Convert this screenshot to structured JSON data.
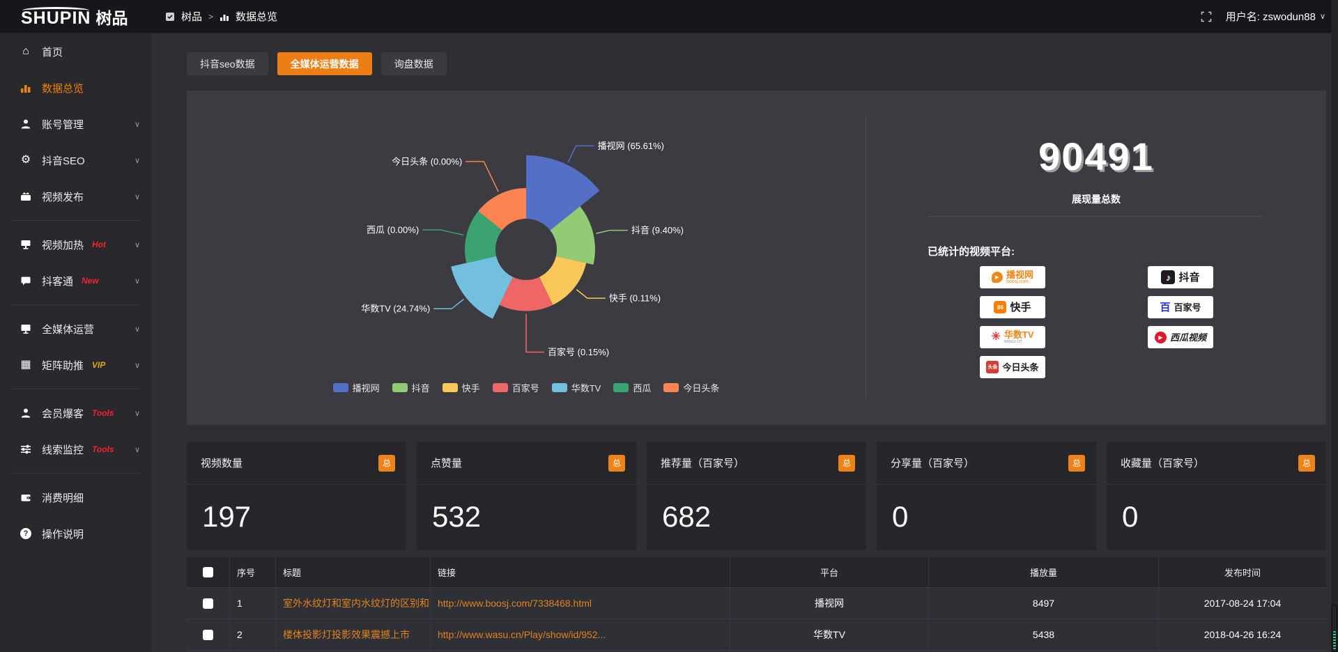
{
  "header": {
    "logo_text": "SHUPIN",
    "logo_cn": "树品",
    "breadcrumb": {
      "root": "树品",
      "sep": ">",
      "current": "数据总览"
    },
    "username_label": "用户名: zswodun88"
  },
  "sidebar": {
    "items": [
      {
        "label": "首页"
      },
      {
        "label": "数据总览"
      },
      {
        "label": "账号管理"
      },
      {
        "label": "抖音SEO"
      },
      {
        "label": "视频发布"
      },
      {
        "label": "视频加热",
        "badge": "Hot"
      },
      {
        "label": "抖客通",
        "badge": "New"
      },
      {
        "label": "全媒体运营"
      },
      {
        "label": "矩阵助推",
        "badge": "VIP"
      },
      {
        "label": "会员爆客",
        "badge": "Tools"
      },
      {
        "label": "线索监控",
        "badge": "Tools"
      },
      {
        "label": "消费明细"
      },
      {
        "label": "操作说明"
      }
    ]
  },
  "tabs": {
    "items": [
      {
        "label": "抖音seo数据"
      },
      {
        "label": "全媒体运营数据"
      },
      {
        "label": "询盘数据"
      }
    ]
  },
  "chart_data": {
    "type": "pie",
    "subtype": "nightingale-rose",
    "title": "",
    "legend_position": "bottom",
    "total": 90491,
    "series": [
      {
        "name": "播视网",
        "pct": 65.61,
        "color": "#5470c6"
      },
      {
        "name": "抖音",
        "pct": 9.4,
        "color": "#91cc75"
      },
      {
        "name": "快手",
        "pct": 0.11,
        "color": "#fac858"
      },
      {
        "name": "百家号",
        "pct": 0.15,
        "color": "#ee6666"
      },
      {
        "name": "华数TV",
        "pct": 24.74,
        "color": "#73c0de"
      },
      {
        "name": "西瓜",
        "pct": 0.0,
        "color": "#3ba272"
      },
      {
        "name": "今日头条",
        "pct": 0.0,
        "color": "#fc8452"
      }
    ]
  },
  "summary": {
    "total_value": "90491",
    "total_label": "展现量总数",
    "platforms_label": "已统计的视频平台:",
    "platforms": {
      "col1": [
        {
          "name": "播视网",
          "sub": "boosj.com"
        },
        {
          "name": "快手"
        },
        {
          "name": "华数TV",
          "sub": "wasu.cn"
        },
        {
          "name": "今日头条"
        }
      ],
      "col2": [
        {
          "name": "抖音"
        },
        {
          "name": "百家号"
        },
        {
          "name": "西瓜视频"
        }
      ]
    }
  },
  "cards": {
    "badge": "总",
    "items": [
      {
        "title": "视频数量",
        "value": "197"
      },
      {
        "title": "点赞量",
        "value": "532"
      },
      {
        "title": "推荐量（百家号）",
        "value": "682"
      },
      {
        "title": "分享量（百家号）",
        "value": "0"
      },
      {
        "title": "收藏量（百家号）",
        "value": "0"
      }
    ]
  },
  "table": {
    "columns": [
      "序号",
      "标题",
      "链接",
      "平台",
      "播放量",
      "发布时间"
    ],
    "rows": [
      {
        "no": "1",
        "title": "室外水纹灯和室内水纹灯的区别和简介",
        "link": "http://www.boosj.com/7338468.html",
        "platform": "播视网",
        "plays": "8497",
        "time": "2017-08-24 17:04"
      },
      {
        "no": "2",
        "title": "楼体投影灯投影效果震撼上市",
        "link": "http://www.wasu.cn/Play/show/id/952...",
        "platform": "华数TV",
        "plays": "5438",
        "time": "2018-04-26 16:24"
      }
    ]
  }
}
